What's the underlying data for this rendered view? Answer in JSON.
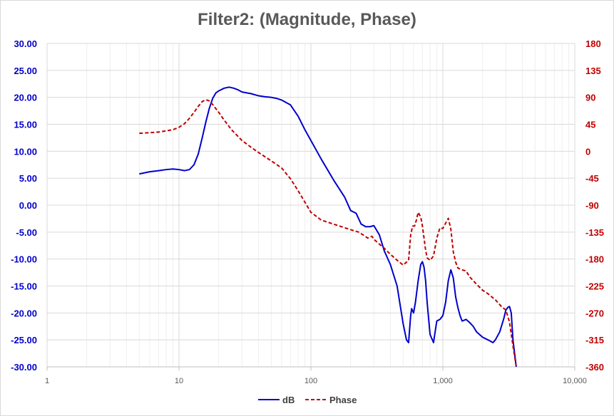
{
  "chart_data": {
    "type": "line",
    "title": "Filter2: (Magnitude, Phase)",
    "x_scale": "log",
    "xlim": [
      1,
      10000
    ],
    "x_tick_labels": [
      "1",
      "10",
      "100",
      "1,000",
      "10,000"
    ],
    "x_tick_values": [
      1,
      10,
      100,
      1000,
      10000
    ],
    "ylim_left": [
      -30,
      30
    ],
    "y_left_ticks": [
      "30.00",
      "25.00",
      "20.00",
      "15.00",
      "10.00",
      "5.00",
      "0.00",
      "-5.00",
      "-10.00",
      "-15.00",
      "-20.00",
      "-25.00",
      "-30.00"
    ],
    "ylim_right": [
      -360,
      180
    ],
    "y_right_ticks": [
      "180",
      "135",
      "90",
      "45",
      "0",
      "-45",
      "-90",
      "-135",
      "-180",
      "-225",
      "-270",
      "-315",
      "-360"
    ],
    "grid": true,
    "legend_position": "bottom",
    "series": [
      {
        "name": "dB",
        "axis": "left",
        "color": "#0000cc",
        "style": "solid",
        "x": [
          5,
          6,
          7,
          8,
          9,
          10,
          11,
          12,
          13,
          14,
          15,
          16,
          17,
          18,
          19,
          20,
          22,
          24,
          26,
          28,
          30,
          35,
          40,
          45,
          50,
          55,
          60,
          70,
          80,
          90,
          100,
          120,
          150,
          180,
          200,
          220,
          240,
          260,
          280,
          300,
          330,
          360,
          400,
          450,
          500,
          530,
          550,
          570,
          580,
          600,
          620,
          650,
          680,
          700,
          720,
          740,
          760,
          800,
          850,
          880,
          900,
          950,
          1000,
          1050,
          1100,
          1150,
          1200,
          1250,
          1300,
          1350,
          1400,
          1500,
          1600,
          1700,
          1800,
          2000,
          2200,
          2400,
          2500,
          2700,
          2900,
          3000,
          3100,
          3200,
          3300,
          3400,
          3600
        ],
        "values": [
          5.8,
          6.2,
          6.4,
          6.6,
          6.7,
          6.6,
          6.4,
          6.6,
          7.5,
          9.5,
          12.5,
          15.5,
          18.0,
          19.8,
          20.8,
          21.2,
          21.7,
          21.9,
          21.7,
          21.4,
          21.0,
          20.7,
          20.3,
          20.1,
          20.0,
          19.8,
          19.5,
          18.6,
          16.5,
          14.0,
          12.0,
          8.5,
          4.5,
          1.5,
          -1.0,
          -1.5,
          -3.5,
          -4.0,
          -4.0,
          -3.8,
          -5.5,
          -8.5,
          -11.0,
          -15.0,
          -22.0,
          -25.0,
          -25.5,
          -20.5,
          -19.2,
          -20.0,
          -18.0,
          -14.0,
          -11.0,
          -10.5,
          -11.5,
          -14.0,
          -18.0,
          -24.0,
          -25.5,
          -23.0,
          -21.5,
          -21.2,
          -20.5,
          -18.0,
          -14.0,
          -12.0,
          -13.5,
          -17.0,
          -19.0,
          -20.5,
          -21.5,
          -21.2,
          -21.8,
          -22.5,
          -23.5,
          -24.5,
          -25.0,
          -25.5,
          -25.0,
          -23.5,
          -21.0,
          -19.5,
          -19.0,
          -18.8,
          -20.0,
          -25.0,
          -30.0
        ]
      },
      {
        "name": "Phase",
        "axis": "right",
        "color": "#c00000",
        "style": "dashed",
        "x": [
          5,
          6,
          7,
          8,
          9,
          10,
          11,
          12,
          13,
          14,
          15,
          16,
          17,
          18,
          20,
          22,
          25,
          30,
          35,
          40,
          50,
          60,
          70,
          80,
          90,
          100,
          120,
          150,
          200,
          230,
          250,
          270,
          290,
          300,
          330,
          360,
          400,
          450,
          500,
          550,
          570,
          590,
          610,
          630,
          650,
          680,
          700,
          720,
          740,
          760,
          800,
          850,
          900,
          950,
          1000,
          1050,
          1100,
          1150,
          1200,
          1250,
          1300,
          1400,
          1500,
          1600,
          1800,
          2000,
          2200,
          2500,
          2800,
          3000,
          3200,
          3400,
          3600
        ],
        "values": [
          30,
          31,
          32,
          34,
          36,
          40,
          46,
          55,
          65,
          75,
          83,
          86,
          84,
          78,
          65,
          52,
          36,
          18,
          7,
          -2,
          -16,
          -28,
          -46,
          -66,
          -85,
          -102,
          -115,
          -122,
          -131,
          -135,
          -140,
          -145,
          -142,
          -147,
          -155,
          -162,
          -172,
          -182,
          -190,
          -182,
          -140,
          -125,
          -125,
          -115,
          -102,
          -110,
          -125,
          -145,
          -165,
          -178,
          -182,
          -175,
          -145,
          -128,
          -129,
          -120,
          -112,
          -130,
          -168,
          -185,
          -195,
          -198,
          -200,
          -210,
          -222,
          -232,
          -238,
          -248,
          -260,
          -265,
          -285,
          -325,
          -365
        ]
      }
    ]
  },
  "legend": {
    "items": [
      {
        "label": "dB",
        "color": "#0000cc",
        "style": "solid"
      },
      {
        "label": "Phase",
        "color": "#c00000",
        "style": "dashed"
      }
    ]
  },
  "colors": {
    "left_axis": "#0000cc",
    "right_axis": "#c00000",
    "grid_major": "#d9d9d9",
    "grid_minor": "#efefef",
    "title": "#595959"
  }
}
